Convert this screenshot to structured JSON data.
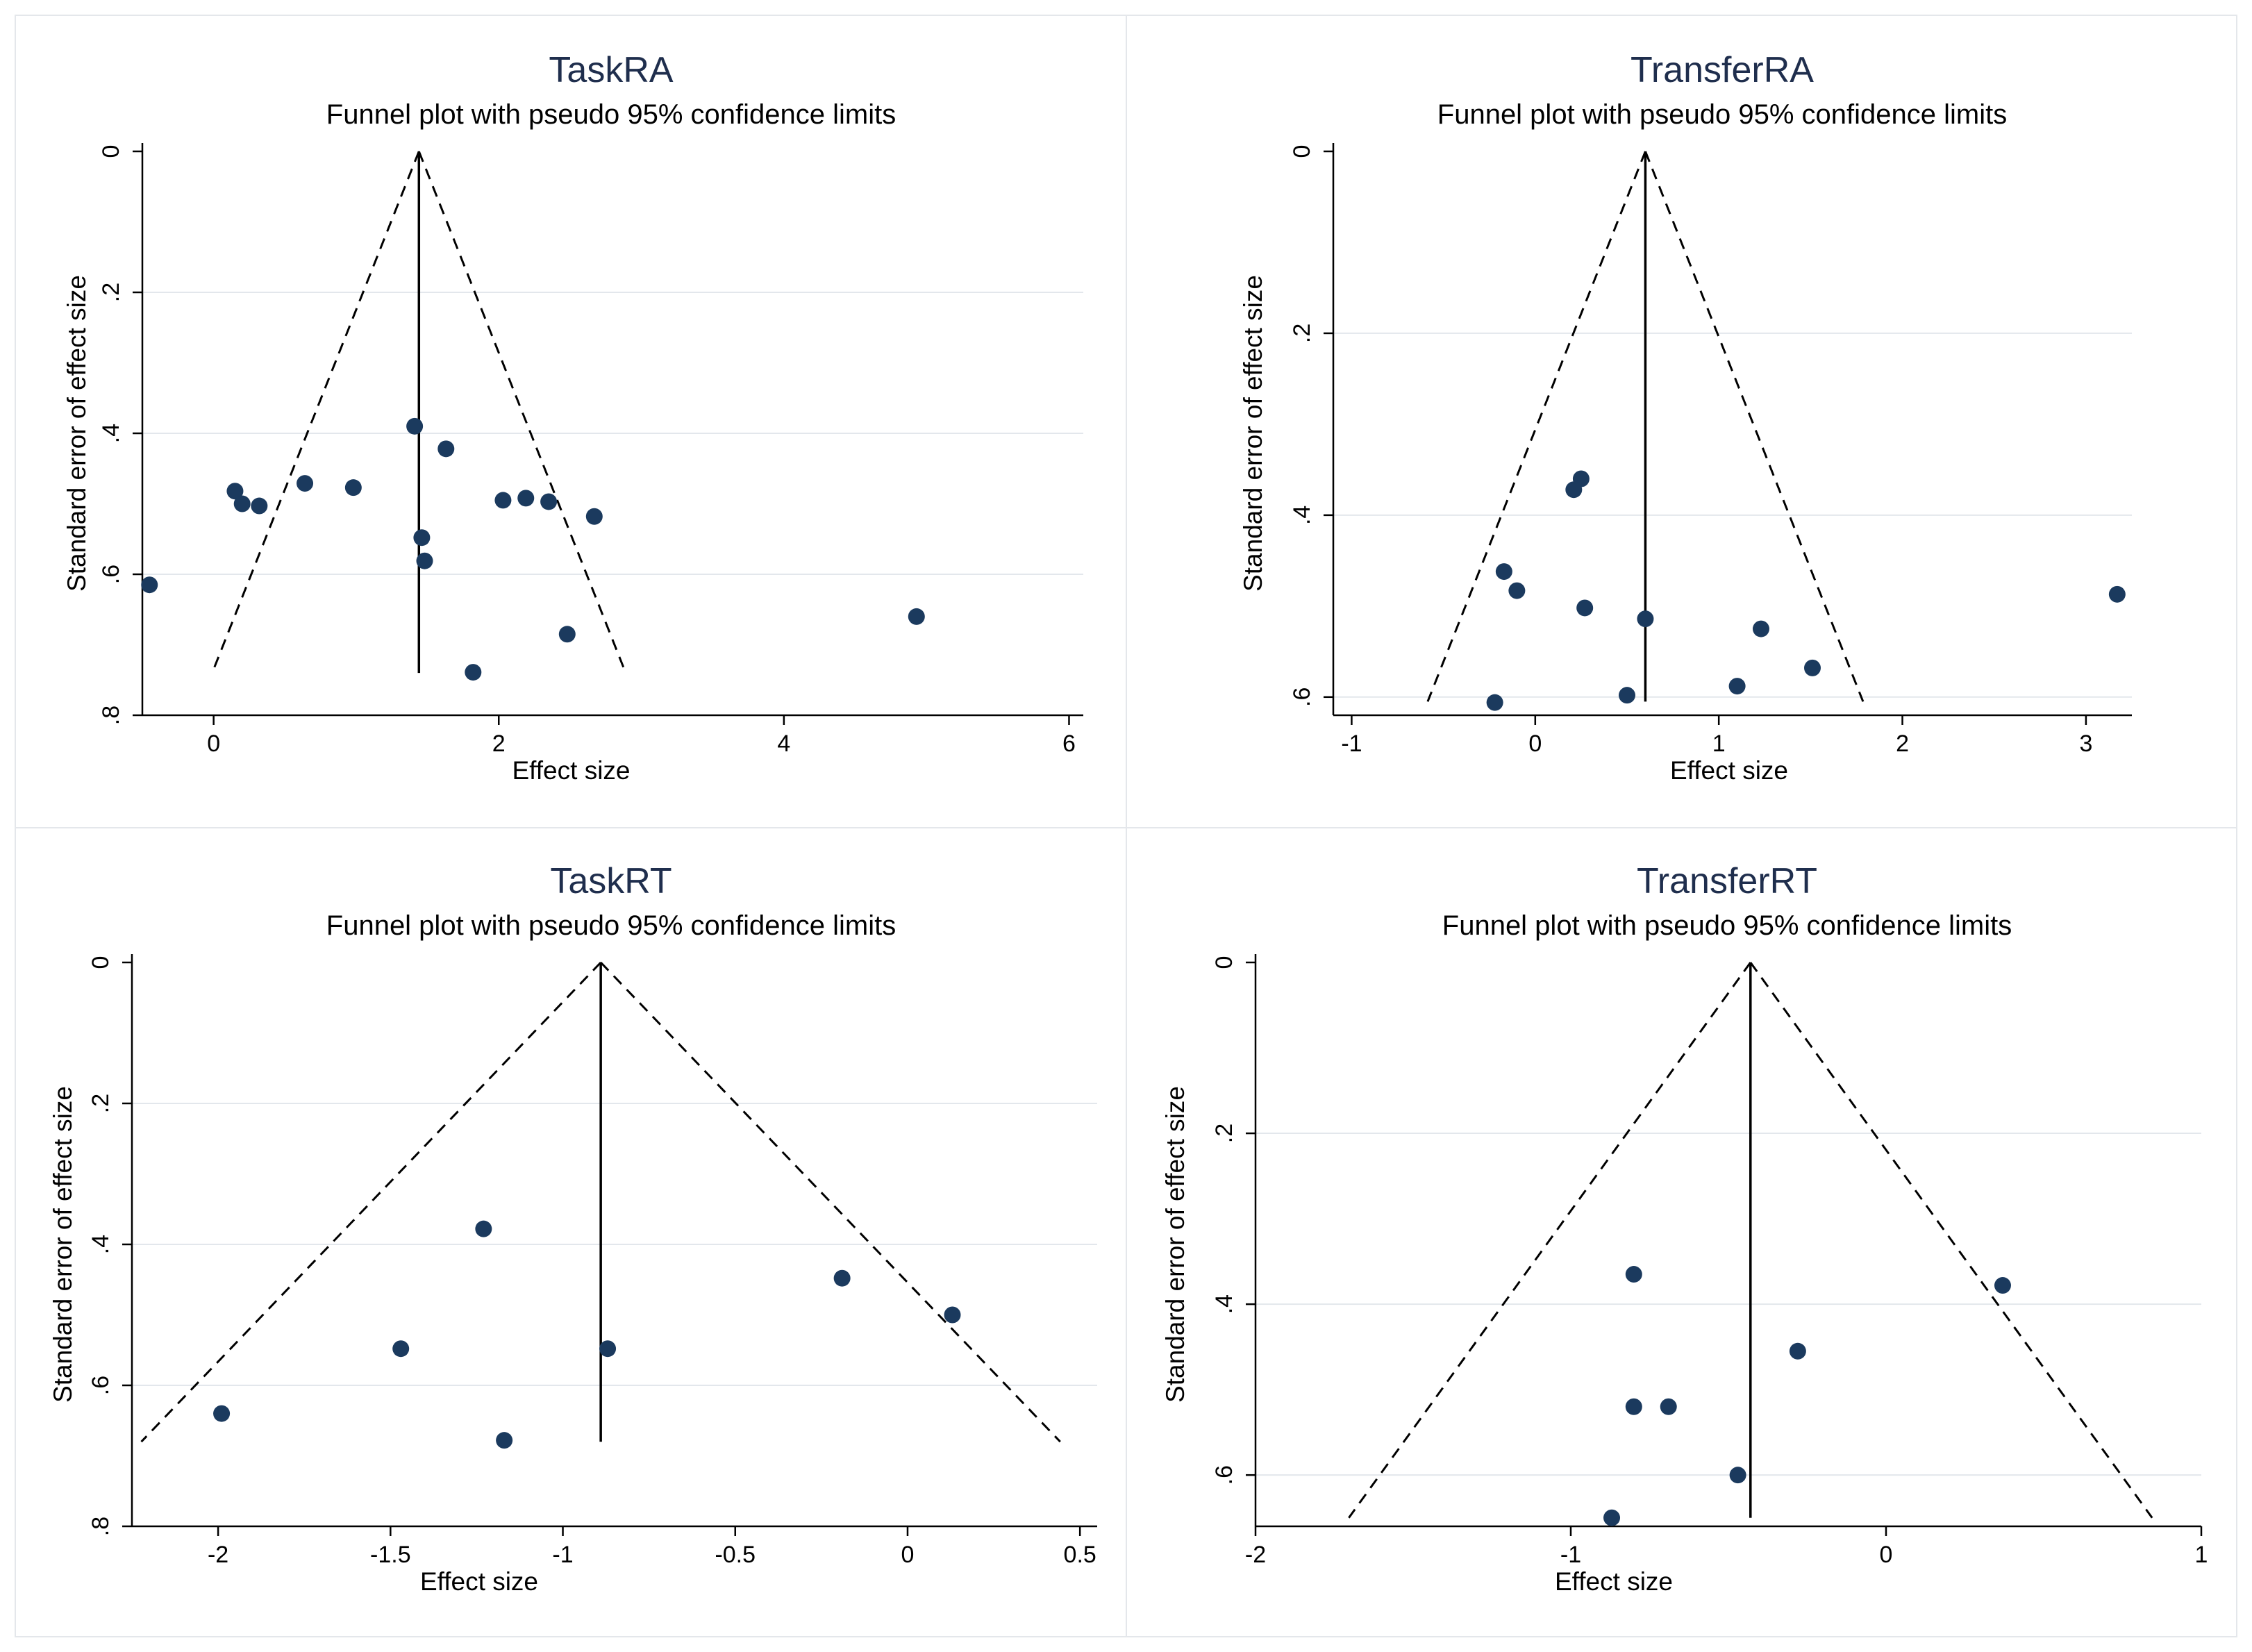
{
  "colors": {
    "point": "#1b3a5e",
    "title": "#1f2e4d",
    "grid": "#e3e7ec",
    "frame": "#e4e7eb"
  },
  "chart_data": [
    {
      "type": "scatter",
      "title": "TaskRA",
      "subtitle": "Funnel plot with pseudo 95% confidence limits",
      "xlabel": "Effect size",
      "ylabel": "Standard error of effect size",
      "xlim": [
        -0.5,
        6.1
      ],
      "ylim": [
        0,
        0.8
      ],
      "y_inverted": true,
      "xticks": [
        0,
        2,
        4,
        6
      ],
      "xticklabels": [
        "0",
        "2",
        "4",
        "6"
      ],
      "yticks": [
        0,
        0.2,
        0.4,
        0.6,
        0.8
      ],
      "yticklabels": [
        "0",
        ".2",
        ".4",
        ".6",
        ".8"
      ],
      "pooled_effect": 1.44,
      "funnel_max_se": 0.74,
      "points": [
        {
          "x": -0.45,
          "y": 0.615
        },
        {
          "x": 0.15,
          "y": 0.482
        },
        {
          "x": 0.2,
          "y": 0.5
        },
        {
          "x": 0.32,
          "y": 0.503
        },
        {
          "x": 0.64,
          "y": 0.471
        },
        {
          "x": 0.98,
          "y": 0.477
        },
        {
          "x": 1.41,
          "y": 0.39
        },
        {
          "x": 1.63,
          "y": 0.422
        },
        {
          "x": 1.46,
          "y": 0.548
        },
        {
          "x": 1.48,
          "y": 0.581
        },
        {
          "x": 2.03,
          "y": 0.495
        },
        {
          "x": 2.19,
          "y": 0.492
        },
        {
          "x": 2.35,
          "y": 0.497
        },
        {
          "x": 2.67,
          "y": 0.518
        },
        {
          "x": 2.48,
          "y": 0.685
        },
        {
          "x": 1.82,
          "y": 0.739
        },
        {
          "x": 4.93,
          "y": 0.66
        }
      ]
    },
    {
      "type": "scatter",
      "title": "TransferRA",
      "subtitle": "Funnel plot with pseudo 95% confidence limits",
      "xlabel": "Effect size",
      "ylabel": "Standard error of effect size",
      "xlim": [
        -1.1,
        3.25
      ],
      "ylim": [
        0,
        0.62
      ],
      "y_inverted": true,
      "xticks": [
        -1,
        0,
        1,
        2,
        3
      ],
      "xticklabels": [
        "-1",
        "0",
        "1",
        "2",
        "3"
      ],
      "yticks": [
        0,
        0.2,
        0.4,
        0.6
      ],
      "yticklabels": [
        "0",
        ".2",
        ".4",
        ".6"
      ],
      "pooled_effect": 0.6,
      "funnel_max_se": 0.605,
      "points": [
        {
          "x": 0.25,
          "y": 0.36
        },
        {
          "x": 0.21,
          "y": 0.372
        },
        {
          "x": -0.17,
          "y": 0.462
        },
        {
          "x": -0.1,
          "y": 0.483
        },
        {
          "x": 0.27,
          "y": 0.502
        },
        {
          "x": 0.6,
          "y": 0.514
        },
        {
          "x": 1.23,
          "y": 0.525
        },
        {
          "x": 1.51,
          "y": 0.568
        },
        {
          "x": 1.1,
          "y": 0.588
        },
        {
          "x": 0.5,
          "y": 0.598
        },
        {
          "x": -0.22,
          "y": 0.606
        },
        {
          "x": 3.17,
          "y": 0.487
        }
      ]
    },
    {
      "type": "scatter",
      "title": "TaskRT",
      "subtitle": "Funnel plot with pseudo 95% confidence limits",
      "xlabel": "Effect size",
      "ylabel": "Standard error of effect size",
      "xlim": [
        -2.25,
        0.55
      ],
      "ylim": [
        0,
        0.8
      ],
      "y_inverted": true,
      "xticks": [
        -2,
        -1.5,
        -1,
        -0.5,
        0,
        0.5
      ],
      "xticklabels": [
        "-2",
        "-1.5",
        "-1",
        "-0.5",
        "0",
        "0.5"
      ],
      "yticks": [
        0,
        0.2,
        0.4,
        0.6,
        0.8
      ],
      "yticklabels": [
        "0",
        ".2",
        ".4",
        ".6",
        ".8"
      ],
      "pooled_effect": -0.89,
      "funnel_max_se": 0.68,
      "points": [
        {
          "x": -1.23,
          "y": 0.378
        },
        {
          "x": -0.19,
          "y": 0.448
        },
        {
          "x": 0.13,
          "y": 0.5
        },
        {
          "x": -1.47,
          "y": 0.548
        },
        {
          "x": -0.87,
          "y": 0.548
        },
        {
          "x": -1.99,
          "y": 0.64
        },
        {
          "x": -1.17,
          "y": 0.678
        }
      ]
    },
    {
      "type": "scatter",
      "title": "TransferRT",
      "subtitle": "Funnel plot with pseudo 95% confidence limits",
      "xlabel": "Effect size",
      "ylabel": "Standard error of effect size",
      "xlim": [
        -2.0,
        1.0
      ],
      "ylim": [
        0,
        0.66
      ],
      "y_inverted": true,
      "xticks": [
        -2,
        -1,
        0,
        1
      ],
      "xticklabels": [
        "-2",
        "-1",
        "0",
        "1"
      ],
      "yticks": [
        0,
        0.2,
        0.4,
        0.6
      ],
      "yticklabels": [
        "0",
        ".2",
        ".4",
        ".6"
      ],
      "pooled_effect": -0.43,
      "funnel_max_se": 0.65,
      "points": [
        {
          "x": -0.8,
          "y": 0.365
        },
        {
          "x": 0.37,
          "y": 0.378
        },
        {
          "x": -0.28,
          "y": 0.455
        },
        {
          "x": -0.8,
          "y": 0.52
        },
        {
          "x": -0.69,
          "y": 0.52
        },
        {
          "x": -0.47,
          "y": 0.6
        },
        {
          "x": -0.87,
          "y": 0.65
        }
      ]
    }
  ]
}
